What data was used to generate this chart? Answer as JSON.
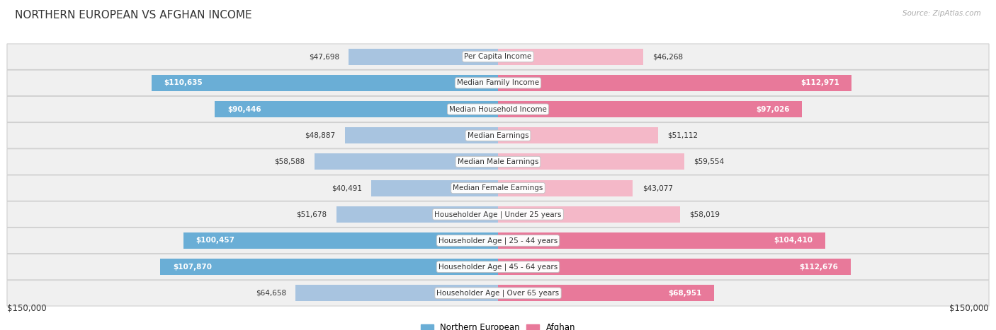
{
  "title": "NORTHERN EUROPEAN VS AFGHAN INCOME",
  "source": "Source: ZipAtlas.com",
  "categories": [
    "Per Capita Income",
    "Median Family Income",
    "Median Household Income",
    "Median Earnings",
    "Median Male Earnings",
    "Median Female Earnings",
    "Householder Age | Under 25 years",
    "Householder Age | 25 - 44 years",
    "Householder Age | 45 - 64 years",
    "Householder Age | Over 65 years"
  ],
  "northern_european": [
    47698,
    110635,
    90446,
    48887,
    58588,
    40491,
    51678,
    100457,
    107870,
    64658
  ],
  "afghan": [
    46268,
    112971,
    97026,
    51112,
    59554,
    43077,
    58019,
    104410,
    112676,
    68951
  ],
  "max_val": 150000,
  "ne_color_light": "#a8c4e0",
  "ne_color_dark": "#6aaed6",
  "af_color_light": "#f4b8c8",
  "af_color_dark": "#e8799a",
  "ne_label": "Northern European",
  "af_label": "Afghan",
  "dark_threshold": 65000,
  "bg_row_color": "#f0f0f0",
  "bar_height": 0.62,
  "x_label_left": "$150,000",
  "x_label_right": "$150,000",
  "title_fontsize": 11,
  "source_fontsize": 7.5,
  "value_fontsize": 7.5,
  "category_fontsize": 7.5
}
